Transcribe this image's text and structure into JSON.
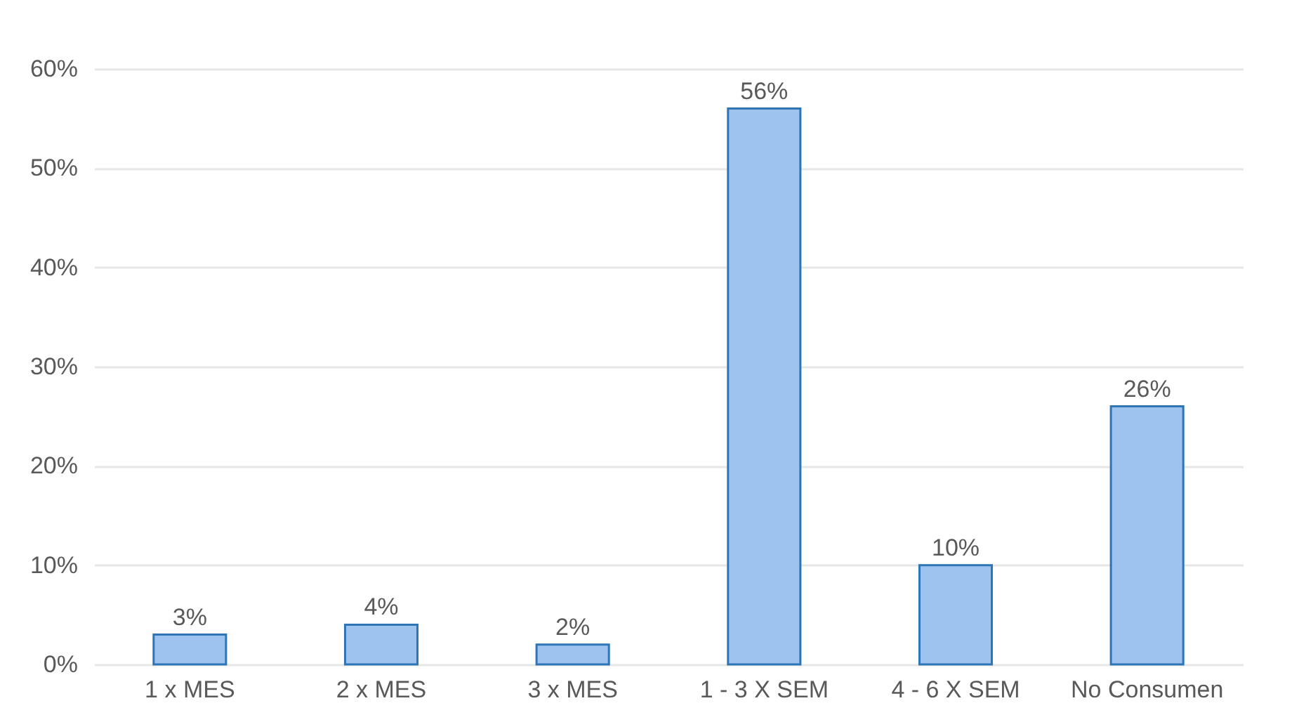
{
  "chart_data": {
    "type": "bar",
    "categories": [
      "1 x MES",
      "2 x MES",
      "3 x MES",
      "1 - 3 X SEM",
      "4 - 6 X SEM",
      "No Consumen"
    ],
    "values": [
      3,
      4,
      2,
      56,
      10,
      26
    ],
    "value_labels": [
      "3%",
      "4%",
      "2%",
      "56%",
      "10%",
      "26%"
    ],
    "color": "#9dc3ee",
    "ylim": [
      0,
      60
    ],
    "yticks": [
      {
        "value": 0,
        "label": "0%"
      },
      {
        "value": 10,
        "label": "10%"
      },
      {
        "value": 20,
        "label": "20%"
      },
      {
        "value": 30,
        "label": "30%"
      },
      {
        "value": 40,
        "label": "40%"
      },
      {
        "value": 50,
        "label": "50%"
      },
      {
        "value": 60,
        "label": "60%"
      }
    ],
    "grid": "y"
  }
}
